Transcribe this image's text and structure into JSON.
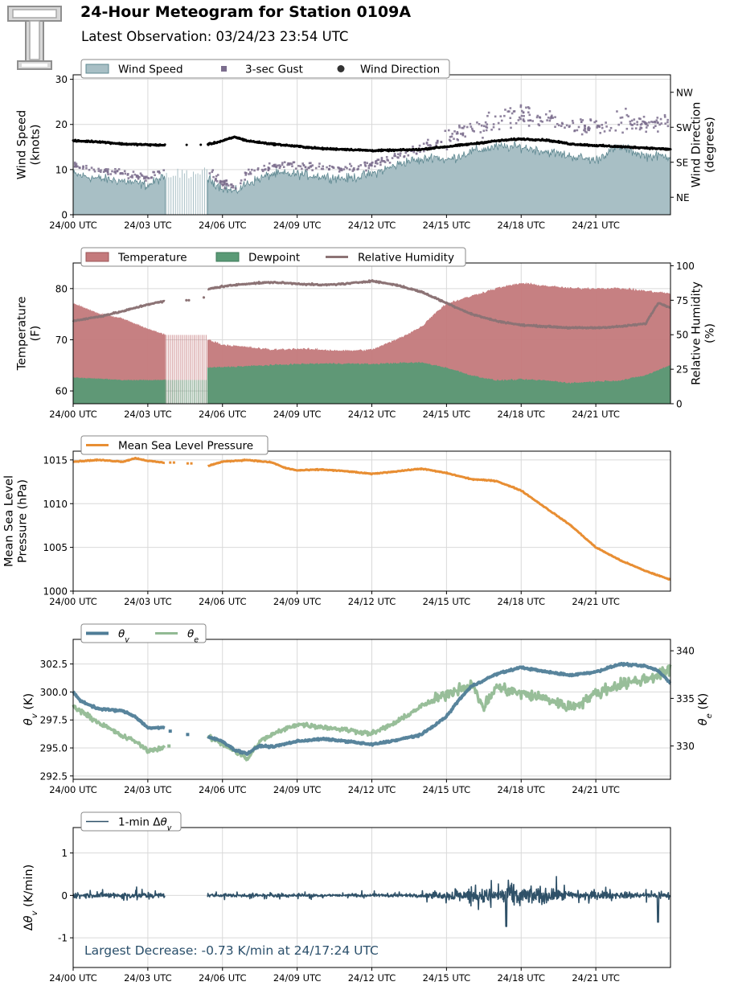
{
  "header": {
    "title": "24-Hour Meteogram for Station 0109A",
    "subtitle": "Latest Observation: 03/24/23 23:54 UTC"
  },
  "colors": {
    "wind_fill": "#a8bfc5",
    "wind_line": "#5e8891",
    "gust": "#7b6d8d",
    "direction": "#000000",
    "temperature": "#c47a7c",
    "dewpoint": "#5a9a76",
    "humidity": "#8c7375",
    "pressure": "#e88e33",
    "theta_v": "#4f7d97",
    "theta_e": "#92ba94",
    "delta": "#2f5168",
    "grid": "#d9d9d9"
  },
  "x_ticks": [
    "24/00 UTC",
    "24/03 UTC",
    "24/06 UTC",
    "24/09 UTC",
    "24/12 UTC",
    "24/15 UTC",
    "24/18 UTC",
    "24/21 UTC"
  ],
  "chart_data": [
    {
      "type": "area",
      "id": "wind",
      "xlim": [
        0,
        24
      ],
      "ylim": [
        0,
        31
      ],
      "y_ticks": [
        0,
        10,
        20,
        30
      ],
      "ylabel": [
        "Wind Speed",
        "(knots)"
      ],
      "y2label": [
        "Wind Direction",
        "(degrees)"
      ],
      "y2lim": [
        0,
        360
      ],
      "y2_ticks": [
        {
          "value": 45,
          "label": "NE"
        },
        {
          "value": 135,
          "label": "SE"
        },
        {
          "value": 225,
          "label": "SW"
        },
        {
          "value": 315,
          "label": "NW"
        }
      ],
      "legend": [
        "Wind Speed",
        "3-sec Gust",
        "Wind Direction"
      ],
      "legend_placement": "top-left",
      "grid": true,
      "gap": [
        3.7,
        5.4
      ],
      "series": [
        {
          "name": "Wind Speed",
          "x": [
            0,
            1,
            2,
            3,
            3.5,
            5.4,
            6,
            6.5,
            7,
            8,
            9,
            10,
            11,
            12,
            13,
            13.5,
            14,
            14.5,
            15,
            16,
            17,
            18,
            19,
            20,
            21,
            21.5,
            22,
            23,
            24
          ],
          "y": [
            9,
            8,
            7.5,
            6.5,
            8,
            8,
            6,
            5,
            7,
            9,
            9,
            8.5,
            8,
            9,
            11,
            12,
            12,
            13,
            12,
            14,
            15,
            15,
            14,
            13,
            12,
            14,
            15,
            13,
            13
          ]
        },
        {
          "name": "3-sec Gust",
          "x": [
            0,
            1,
            2,
            3,
            3.5,
            5.4,
            6,
            6.5,
            7,
            8,
            9,
            10,
            11,
            12,
            13,
            13.5,
            14,
            14.5,
            15,
            16,
            17,
            18,
            19,
            20,
            21,
            21.5,
            22,
            23,
            24
          ],
          "y": [
            11,
            10,
            9,
            8,
            10,
            10,
            7,
            6,
            9,
            11,
            11,
            10.5,
            10,
            11,
            13,
            14,
            14.5,
            16,
            17,
            19,
            21,
            22,
            21,
            20,
            19,
            20,
            21,
            20,
            20
          ]
        },
        {
          "name": "Wind Direction",
          "x": [
            0,
            1,
            2,
            3,
            4,
            5,
            5.5,
            6,
            6.5,
            7,
            8,
            9,
            10,
            11,
            12,
            13,
            14,
            14.5,
            15,
            16,
            17,
            18,
            19,
            20,
            21,
            22,
            23,
            24
          ],
          "y": [
            190,
            188,
            182,
            180,
            178,
            180,
            182,
            190,
            200,
            190,
            182,
            176,
            170,
            168,
            165,
            166,
            168,
            172,
            175,
            182,
            190,
            195,
            192,
            182,
            178,
            175,
            172,
            168
          ]
        }
      ]
    },
    {
      "type": "area",
      "id": "temp",
      "xlim": [
        0,
        24
      ],
      "ylim": [
        57.5,
        85
      ],
      "y_ticks": [
        60,
        70,
        80
      ],
      "ylabel": [
        "Temperature",
        "(F)"
      ],
      "y2label": [
        "Relative Humidity",
        "(%)"
      ],
      "y2lim": [
        0,
        102
      ],
      "y2_ticks": [
        0,
        25,
        50,
        75,
        100
      ],
      "legend": [
        "Temperature",
        "Dewpoint",
        "Relative Humidity"
      ],
      "legend_placement": "top-left",
      "grid": true,
      "gap": [
        3.7,
        5.4
      ],
      "series": [
        {
          "name": "Temperature",
          "x": [
            0,
            0.5,
            1,
            2,
            3,
            3.6,
            5.4,
            6,
            7,
            8,
            9,
            10,
            11,
            12,
            13,
            14,
            14.5,
            15,
            16,
            17,
            18,
            19,
            20,
            21,
            22,
            23,
            24
          ],
          "y": [
            77,
            76,
            75,
            74,
            72,
            71,
            70,
            69,
            68.5,
            68,
            68.2,
            68,
            67.8,
            68,
            70,
            72.5,
            75,
            77,
            78.5,
            80,
            81,
            80.5,
            80,
            80,
            80,
            79.5,
            79
          ]
        },
        {
          "name": "Dewpoint",
          "x": [
            0,
            1,
            2,
            3,
            3.6,
            5.4,
            6,
            7,
            8,
            9,
            10,
            11,
            12,
            13,
            14,
            15,
            16,
            17,
            18,
            19,
            20,
            21,
            22,
            23,
            24
          ],
          "y": [
            62.5,
            62.3,
            62,
            62,
            62,
            64.5,
            64.6,
            64.8,
            65,
            65.2,
            65.3,
            65.3,
            65.2,
            65.4,
            65.5,
            64.5,
            63,
            62,
            62.2,
            62,
            61.5,
            61.8,
            62,
            63,
            65
          ]
        },
        {
          "name": "Relative Humidity",
          "x": [
            0,
            1,
            2,
            3,
            3.6,
            4.5,
            5.4,
            6,
            7,
            8,
            9,
            10,
            11,
            12,
            13,
            14,
            15,
            16,
            17,
            18,
            19,
            20,
            21,
            22,
            23,
            23.5,
            24
          ],
          "y": [
            60,
            63,
            67,
            72,
            74,
            75,
            83,
            85,
            87,
            88,
            87,
            86,
            87,
            89,
            86,
            81,
            73,
            65,
            60,
            57,
            56,
            55,
            55,
            56,
            58,
            73,
            70
          ]
        }
      ]
    },
    {
      "type": "line",
      "id": "pressure",
      "xlim": [
        0,
        24
      ],
      "ylim": [
        1000,
        1016
      ],
      "y_ticks": [
        1000,
        1005,
        1010,
        1015
      ],
      "ylabel": [
        "Mean Sea Level",
        "Pressure (hPa)"
      ],
      "legend": [
        "Mean Sea Level Pressure"
      ],
      "legend_placement": "top-left",
      "grid": true,
      "gap": [
        3.7,
        5.4
      ],
      "series": [
        {
          "name": "Mean Sea Level Pressure",
          "x": [
            0,
            1,
            2,
            2.5,
            3,
            3.6,
            5.4,
            6,
            7,
            8,
            8.5,
            9,
            10,
            11,
            12,
            13,
            14,
            15,
            16,
            17,
            18,
            19,
            20,
            21,
            22,
            23,
            24
          ],
          "y": [
            1014.8,
            1015,
            1014.8,
            1015.2,
            1014.9,
            1014.7,
            1014.3,
            1014.8,
            1015,
            1014.7,
            1014.1,
            1013.8,
            1013.9,
            1013.7,
            1013.4,
            1013.7,
            1014,
            1013.5,
            1012.8,
            1012.6,
            1011.5,
            1009.5,
            1007.5,
            1005,
            1003.5,
            1002.3,
            1001.3
          ]
        }
      ]
    },
    {
      "type": "line",
      "id": "theta",
      "xlim": [
        0,
        24
      ],
      "ylim": [
        292.2,
        304.7
      ],
      "y_ticks": [
        292.5,
        295.0,
        297.5,
        300.0,
        302.5
      ],
      "ylabel": [
        "θv (K)"
      ],
      "y2label": [
        "θe (K)"
      ],
      "y2lim": [
        326.5,
        341.2
      ],
      "y2_ticks": [
        330,
        335,
        340
      ],
      "legend": [
        "θv",
        "θe"
      ],
      "legend_placement": "top-left",
      "grid": true,
      "gap": [
        3.7,
        5.4
      ],
      "series": [
        {
          "name": "θv",
          "x": [
            0,
            0.3,
            1,
            2,
            2.5,
            3,
            3.6,
            5.4,
            6,
            6.5,
            7,
            7.5,
            8,
            9,
            10,
            11,
            12,
            13,
            14,
            14.5,
            15,
            15.5,
            16,
            17,
            18,
            19,
            20,
            21,
            22,
            23,
            23.5,
            24
          ],
          "y": [
            300,
            299.2,
            298.5,
            298.3,
            297.8,
            296.8,
            296.8,
            296,
            295.6,
            294.8,
            294.5,
            295.2,
            295.1,
            295.6,
            295.8,
            295.6,
            295.3,
            295.7,
            296.2,
            297,
            297.8,
            299.3,
            300.5,
            301.6,
            302.2,
            301.8,
            301.5,
            301.8,
            302.5,
            302.3,
            301.9,
            300.8
          ]
        },
        {
          "name": "θe",
          "x": [
            0,
            1,
            2,
            2.5,
            3,
            3.6,
            5.4,
            6,
            6.5,
            7,
            7.5,
            8,
            9,
            10,
            11,
            12,
            13,
            14,
            14.5,
            15,
            15.5,
            16,
            16.5,
            17,
            18,
            19,
            20,
            21,
            22,
            23,
            23.5,
            24
          ],
          "y": [
            334.2,
            332.5,
            331,
            330.5,
            329.5,
            329.8,
            331,
            330.2,
            329.5,
            328.6,
            330.5,
            331.2,
            332.3,
            332,
            331.7,
            331.3,
            332.5,
            334.2,
            334.8,
            335.5,
            336,
            336.5,
            334,
            336.2,
            335.5,
            335,
            334,
            335.5,
            336.5,
            337,
            337.5,
            338
          ]
        }
      ]
    },
    {
      "type": "line",
      "id": "delta",
      "xlim": [
        0,
        24
      ],
      "ylim": [
        -1.7,
        1.6
      ],
      "y_ticks": [
        -1,
        0,
        1
      ],
      "ylabel": [
        "Δθv (K/min)"
      ],
      "legend": [
        "1-min Δθv"
      ],
      "legend_placement": "top-left",
      "grid": true,
      "gap": [
        3.7,
        5.4
      ],
      "annotation": "Largest Decrease: -0.73 K/min at 24/17:24 UTC",
      "amplitude_envelope": {
        "x": [
          0,
          2,
          3.6,
          5.4,
          8,
          12,
          14,
          15,
          16,
          17,
          17.4,
          18,
          19,
          20,
          21,
          22,
          23,
          24
        ],
        "y": [
          0.15,
          0.2,
          0.15,
          0.12,
          0.1,
          0.1,
          0.12,
          0.3,
          0.35,
          0.5,
          0.73,
          0.55,
          0.45,
          0.3,
          0.25,
          0.2,
          0.2,
          0.2
        ]
      },
      "series": [
        {
          "name": "1-min Δθv",
          "x": [
            0,
            17.4,
            23.5,
            24
          ],
          "y": [
            0,
            -0.73,
            -0.63,
            0
          ]
        }
      ]
    }
  ]
}
